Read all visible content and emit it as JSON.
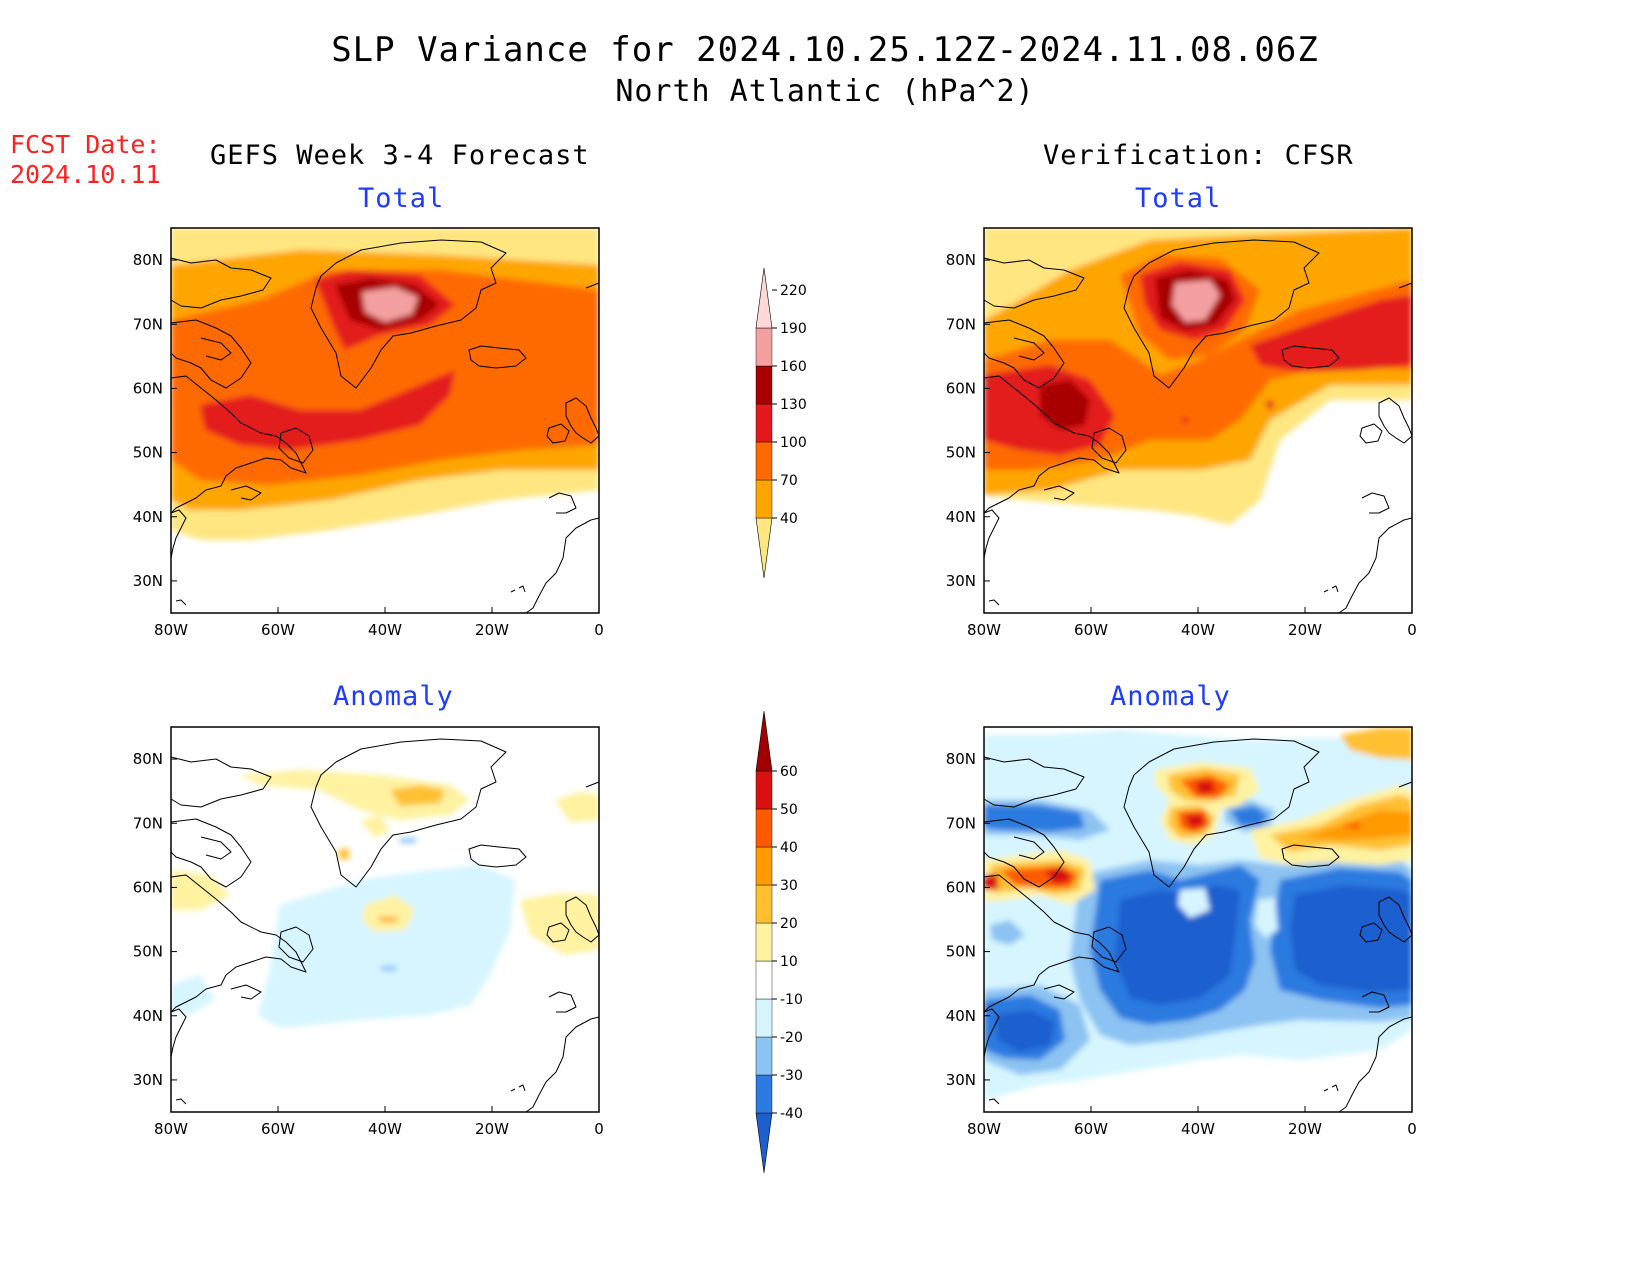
{
  "title": "SLP Variance for 2024.10.25.12Z-2024.11.08.06Z",
  "subtitle": "North Atlantic (hPa^2)",
  "fcst_label": "FCST Date:",
  "fcst_date": "2024.10.11",
  "left_header": "GEFS Week 3-4 Forecast",
  "right_header": "Verification: CFSR",
  "panel_titles": {
    "top": "Total",
    "bottom": "Anomaly"
  },
  "axes": {
    "x_ticks": [
      "80W",
      "60W",
      "40W",
      "20W",
      "0"
    ],
    "y_ticks": [
      "80N",
      "70N",
      "60N",
      "50N",
      "40N",
      "30N"
    ]
  },
  "colorbars": {
    "total": {
      "labels": [
        "40",
        "70",
        "100",
        "130",
        "160",
        "190",
        "220"
      ],
      "colors": [
        "#ffe680",
        "#ffa500",
        "#ff6a00",
        "#e31a1c",
        "#a80000",
        "#f4a0a0",
        "#ffd8d8"
      ]
    },
    "anomaly": {
      "labels": [
        "-40",
        "-30",
        "-20",
        "-10",
        "10",
        "20",
        "30",
        "40",
        "50",
        "60"
      ],
      "colors": [
        "#1e5fcf",
        "#2b7ae0",
        "#8cc3f2",
        "#d6f5ff",
        "#ffffff",
        "#fff2a0",
        "#ffc030",
        "#ff9a00",
        "#ff5a00",
        "#d81010",
        "#a00000"
      ]
    }
  },
  "chart_data": [
    {
      "type": "heatmap",
      "panel": "GEFS Week 3-4 Forecast - Total",
      "xlim": [
        "80W",
        "0"
      ],
      "ylim": [
        "25N",
        "85N"
      ],
      "levels": [
        40,
        70,
        100,
        130,
        160,
        190,
        220
      ],
      "features": [
        {
          "center": [
            "40W",
            "74N"
          ],
          "max_level": 190
        },
        {
          "center": [
            "55W",
            "52N"
          ],
          "level": 130,
          "band": "SW-NE maximum across Newfoundland"
        }
      ]
    },
    {
      "type": "heatmap",
      "panel": "Verification: CFSR - Total",
      "xlim": [
        "80W",
        "0"
      ],
      "ylim": [
        "25N",
        "85N"
      ],
      "levels": [
        40,
        70,
        100,
        130,
        160,
        190,
        220
      ],
      "features": [
        {
          "center": [
            "42W",
            "72N"
          ],
          "max_level": 190
        },
        {
          "center": [
            "67W",
            "55N"
          ],
          "level": 160
        },
        {
          "center": [
            "15W",
            "65N"
          ],
          "level": 130
        }
      ]
    },
    {
      "type": "heatmap",
      "panel": "GEFS Week 3-4 Forecast - Anomaly",
      "xlim": [
        "80W",
        "0"
      ],
      "ylim": [
        "25N",
        "85N"
      ],
      "levels": [
        -40,
        -30,
        -20,
        -10,
        10,
        20,
        30,
        40,
        50,
        60
      ],
      "features": [
        {
          "center": [
            "37W",
            "75N"
          ],
          "level": 20
        },
        {
          "center": [
            "40W",
            "55N"
          ],
          "level": 20
        },
        {
          "center": [
            "45W",
            "48N"
          ],
          "level": -20
        }
      ]
    },
    {
      "type": "heatmap",
      "panel": "Verification: CFSR - Anomaly",
      "xlim": [
        "80W",
        "0"
      ],
      "ylim": [
        "25N",
        "85N"
      ],
      "levels": [
        -40,
        -30,
        -20,
        -10,
        10,
        20,
        30,
        40,
        50,
        60
      ],
      "features": [
        {
          "center": [
            "40W",
            "75N"
          ],
          "max_level": 50
        },
        {
          "center": [
            "65W",
            "62N"
          ],
          "level": 50
        },
        {
          "center": [
            "42W",
            "48N"
          ],
          "level": -40
        },
        {
          "center": [
            "12W",
            "52N"
          ],
          "level": -40
        },
        {
          "center": [
            "72W",
            "40N"
          ],
          "level": -40
        }
      ]
    }
  ]
}
